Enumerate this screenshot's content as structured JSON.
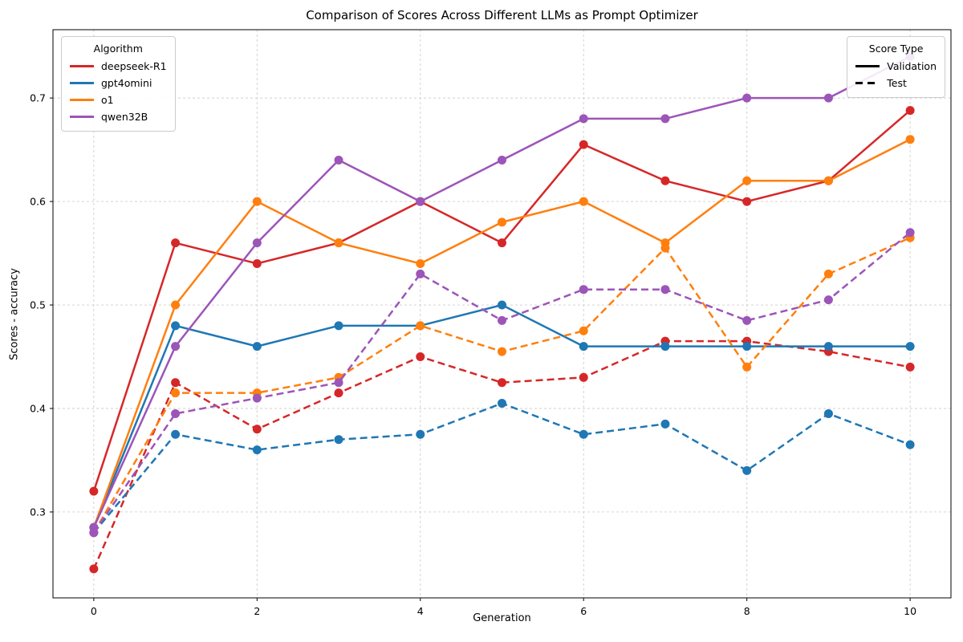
{
  "chart_data": {
    "type": "line",
    "title": "Comparison of Scores Across Different LLMs as Prompt Optimizer",
    "xlabel": "Generation",
    "ylabel": "Scores - accuracy",
    "x": [
      0,
      1,
      2,
      3,
      4,
      5,
      6,
      7,
      8,
      9,
      10
    ],
    "xlim": [
      -0.5,
      10.5
    ],
    "ylim": [
      0.217,
      0.766
    ],
    "xticks": [
      0,
      2,
      4,
      6,
      8,
      10
    ],
    "xtick_labels": [
      "0",
      "2",
      "4",
      "6",
      "8",
      "10"
    ],
    "yticks": [
      0.3,
      0.4,
      0.5,
      0.6,
      0.7
    ],
    "ytick_labels": [
      "0.3",
      "0.4",
      "0.5",
      "0.6",
      "0.7"
    ],
    "grid": true,
    "grid_color": "#cfcfcf",
    "legends": {
      "algorithm": {
        "title": "Algorithm",
        "position": "top-left",
        "entries": [
          {
            "label": "deepseek-R1",
            "color": "#d62728"
          },
          {
            "label": "gpt4omini",
            "color": "#1f77b4"
          },
          {
            "label": "o1",
            "color": "#ff7f0e"
          },
          {
            "label": "qwen32B",
            "color": "#9c55b8"
          }
        ]
      },
      "score_type": {
        "title": "Score Type",
        "position": "top-right",
        "entries": [
          {
            "label": "Validation",
            "style": "solid"
          },
          {
            "label": "Test",
            "style": "dashed"
          }
        ]
      }
    },
    "series": [
      {
        "algorithm": "deepseek-R1",
        "score_type": "Validation",
        "color": "#d62728",
        "style": "solid",
        "values": [
          0.32,
          0.56,
          0.54,
          0.56,
          0.6,
          0.56,
          0.655,
          0.62,
          0.6,
          0.62,
          0.688
        ]
      },
      {
        "algorithm": "deepseek-R1",
        "score_type": "Test",
        "color": "#d62728",
        "style": "dashed",
        "values": [
          0.245,
          0.425,
          0.38,
          0.415,
          0.45,
          0.425,
          0.43,
          0.465,
          0.465,
          0.455,
          0.44
        ]
      },
      {
        "algorithm": "gpt4omini",
        "score_type": "Validation",
        "color": "#1f77b4",
        "style": "solid",
        "values": [
          0.285,
          0.48,
          0.46,
          0.48,
          0.48,
          0.5,
          0.46,
          0.46,
          0.46,
          0.46,
          0.46
        ]
      },
      {
        "algorithm": "gpt4omini",
        "score_type": "Test",
        "color": "#1f77b4",
        "style": "dashed",
        "values": [
          0.28,
          0.375,
          0.36,
          0.37,
          0.375,
          0.405,
          0.375,
          0.385,
          0.34,
          0.395,
          0.365
        ]
      },
      {
        "algorithm": "o1",
        "score_type": "Validation",
        "color": "#ff7f0e",
        "style": "solid",
        "values": [
          0.285,
          0.5,
          0.6,
          0.56,
          0.54,
          0.58,
          0.6,
          0.56,
          0.62,
          0.62,
          0.66
        ]
      },
      {
        "algorithm": "o1",
        "score_type": "Test",
        "color": "#ff7f0e",
        "style": "dashed",
        "values": [
          0.28,
          0.415,
          0.415,
          0.43,
          0.48,
          0.455,
          0.475,
          0.555,
          0.44,
          0.53,
          0.565
        ]
      },
      {
        "algorithm": "qwen32B",
        "score_type": "Validation",
        "color": "#9c55b8",
        "style": "solid",
        "values": [
          0.285,
          0.46,
          0.56,
          0.64,
          0.6,
          0.64,
          0.68,
          0.68,
          0.7,
          0.7,
          0.74
        ]
      },
      {
        "algorithm": "qwen32B",
        "score_type": "Test",
        "color": "#9c55b8",
        "style": "dashed",
        "values": [
          0.28,
          0.395,
          0.41,
          0.425,
          0.53,
          0.485,
          0.515,
          0.515,
          0.485,
          0.505,
          0.57
        ]
      }
    ]
  }
}
